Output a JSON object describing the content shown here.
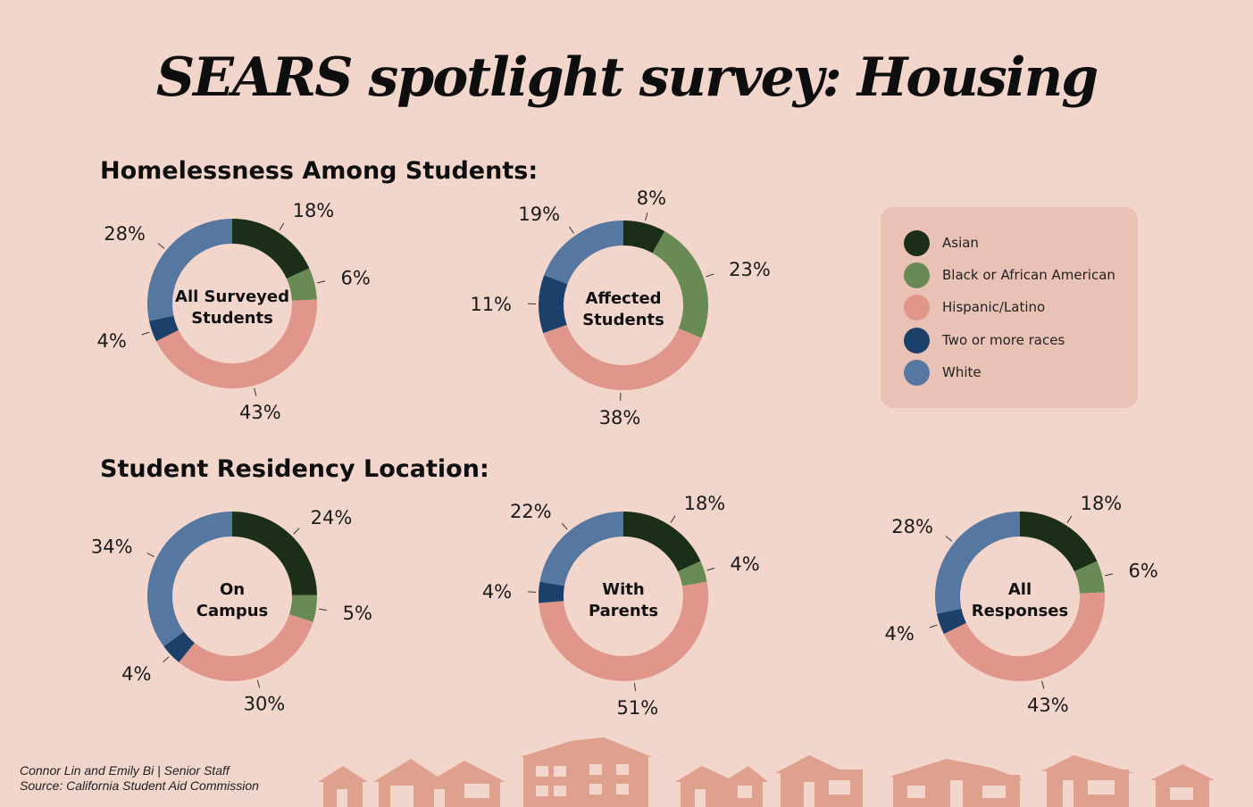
{
  "title": "SEARS spotlight survey: Housing",
  "sections": {
    "homelessness": "Homelessness Among Students:",
    "residency": "Student Residency Location:"
  },
  "legend": [
    {
      "label": "Asian",
      "color": "#1b2e18"
    },
    {
      "label": "Black or African American",
      "color": "#6a8a55"
    },
    {
      "label": "Hispanic/Latino",
      "color": "#e0968a"
    },
    {
      "label": "Two or more races",
      "color": "#1b416a"
    },
    {
      "label": "White",
      "color": "#5577a0"
    }
  ],
  "credits": {
    "authors": "Connor Lin and Emily Bi | Senior Staff",
    "source": "Source: California Student Aid Commission"
  },
  "chart_data": [
    {
      "type": "pie",
      "title": "All Surveyed Students",
      "categories": [
        "Asian",
        "Black or African American",
        "Hispanic/Latino",
        "Two or more races",
        "White"
      ],
      "values": [
        18,
        6,
        43,
        4,
        28
      ],
      "labels": [
        "18%",
        "6%",
        "43%",
        "4%",
        "28%"
      ]
    },
    {
      "type": "pie",
      "title": "Affected Students",
      "categories": [
        "Asian",
        "Black or African American",
        "Hispanic/Latino",
        "Two or more races",
        "White"
      ],
      "values": [
        8,
        23,
        38,
        11,
        19
      ],
      "labels": [
        "8%",
        "23%",
        "38%",
        "11%",
        "19%"
      ]
    },
    {
      "type": "pie",
      "title": "On Campus",
      "categories": [
        "Asian",
        "Black or African American",
        "Hispanic/Latino",
        "Two or more races",
        "White"
      ],
      "values": [
        24,
        5,
        30,
        4,
        34
      ],
      "labels": [
        "24%",
        "5%",
        "30%",
        "4%",
        "34%"
      ]
    },
    {
      "type": "pie",
      "title": "With Parents",
      "categories": [
        "Asian",
        "Black or African American",
        "Hispanic/Latino",
        "Two or more races",
        "White"
      ],
      "values": [
        18,
        4,
        51,
        4,
        22
      ],
      "labels": [
        "18%",
        "4%",
        "51%",
        "4%",
        "22%"
      ]
    },
    {
      "type": "pie",
      "title": "All Responses",
      "categories": [
        "Asian",
        "Black or African American",
        "Hispanic/Latino",
        "Two or more races",
        "White"
      ],
      "values": [
        18,
        6,
        43,
        4,
        28
      ],
      "labels": [
        "18%",
        "6%",
        "43%",
        "4%",
        "28%"
      ]
    }
  ]
}
